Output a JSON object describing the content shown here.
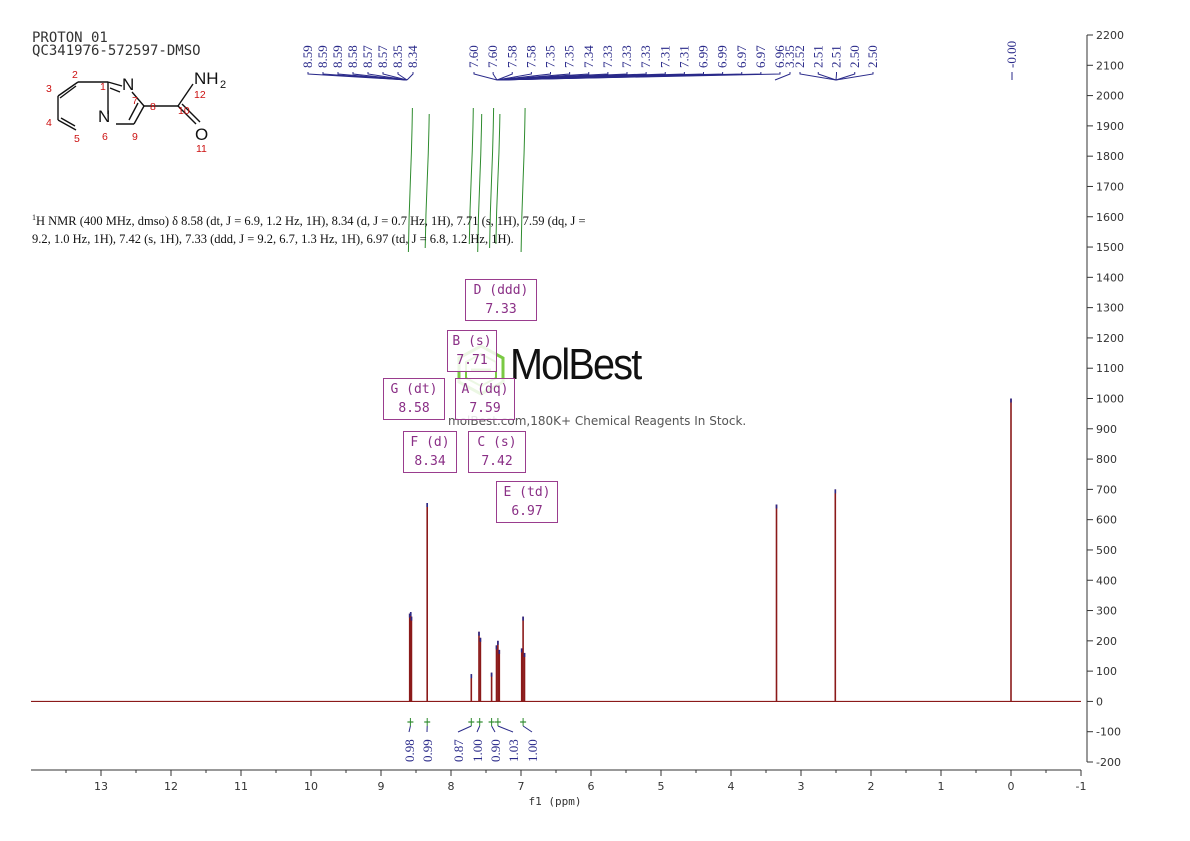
{
  "header": {
    "line1": "PROTON_01",
    "line2": "QC341976-572597-DMSO"
  },
  "structure": {
    "atom_labels": [
      "2",
      "3",
      "4",
      "5",
      "6",
      "7",
      "8",
      "9",
      "10",
      "11",
      "12",
      "1"
    ],
    "group_labels": {
      "N_ring": "N",
      "N_top": "N",
      "NH2": "NH",
      "NH2_sub": "2",
      "O": "O"
    }
  },
  "description": {
    "nucleus_sup": "1",
    "text": "H NMR (400 MHz, dmso) δ 8.58 (dt, J = 6.9, 1.2 Hz, 1H), 8.34 (d, J = 0.7 Hz, 1H), 7.71 (s, 1H), 7.59 (dq, J = 9.2, 1.0 Hz, 1H), 7.42 (s, 1H), 7.33 (ddd, J = 9.2, 6.7, 1.3 Hz, 1H), 6.97 (td, J = 6.8, 1.2 Hz, 1H)."
  },
  "multiplets": [
    {
      "id": "D",
      "label": "D (ddd)",
      "shift": "7.33"
    },
    {
      "id": "B",
      "label": "B (s)",
      "shift": "7.71"
    },
    {
      "id": "G",
      "label": "G (dt)",
      "shift": "8.58"
    },
    {
      "id": "A",
      "label": "A (dq)",
      "shift": "7.59"
    },
    {
      "id": "F",
      "label": "F (d)",
      "shift": "8.34"
    },
    {
      "id": "C",
      "label": "C (s)",
      "shift": "7.42"
    },
    {
      "id": "E",
      "label": "E (td)",
      "shift": "6.97"
    }
  ],
  "watermark": {
    "brand": "MolBest",
    "tagline": "molBest.com,180K+ Chemical Reagents In Stock."
  },
  "colors": {
    "spectrum": "#8b1a1a",
    "peak_labels": "#2a2a8a",
    "integrals": "#2e8b2e",
    "multiplet_box": "#9a3d8e",
    "axis": "#333333"
  },
  "chart_data": {
    "type": "line",
    "xlabel": "f1 (ppm)",
    "ylabel": "",
    "xlim": [
      14,
      -1
    ],
    "ylim": [
      -200,
      2200
    ],
    "x_ticks": [
      13,
      12,
      11,
      10,
      9,
      8,
      7,
      6,
      5,
      4,
      3,
      2,
      1,
      0,
      -1
    ],
    "y_ticks": [
      2200,
      2100,
      2000,
      1900,
      1800,
      1700,
      1600,
      1500,
      1400,
      1300,
      1200,
      1100,
      1000,
      900,
      800,
      700,
      600,
      500,
      400,
      300,
      200,
      100,
      0,
      -100,
      -200
    ],
    "peaks": [
      {
        "ppm": 8.59,
        "height": 290
      },
      {
        "ppm": 8.575,
        "height": 295
      },
      {
        "ppm": 8.565,
        "height": 280
      },
      {
        "ppm": 8.34,
        "height": 655
      },
      {
        "ppm": 7.71,
        "height": 90
      },
      {
        "ppm": 7.6,
        "height": 230
      },
      {
        "ppm": 7.58,
        "height": 210
      },
      {
        "ppm": 7.42,
        "height": 95
      },
      {
        "ppm": 7.35,
        "height": 185
      },
      {
        "ppm": 7.33,
        "height": 200
      },
      {
        "ppm": 7.31,
        "height": 170
      },
      {
        "ppm": 6.99,
        "height": 175
      },
      {
        "ppm": 6.97,
        "height": 280
      },
      {
        "ppm": 6.95,
        "height": 160
      },
      {
        "ppm": 3.35,
        "height": 650
      },
      {
        "ppm": 2.51,
        "height": 700
      },
      {
        "ppm": 0.0,
        "height": 1000
      }
    ],
    "peak_labels": [
      "8.59",
      "8.59",
      "8.59",
      "8.58",
      "8.57",
      "8.57",
      "8.35",
      "8.34",
      "7.60",
      "7.60",
      "7.58",
      "7.58",
      "7.35",
      "7.35",
      "7.34",
      "7.33",
      "7.33",
      "7.33",
      "7.31",
      "7.31",
      "6.99",
      "6.99",
      "6.97",
      "6.97",
      "6.96",
      "3.35",
      "2.52",
      "2.51",
      "2.51",
      "2.50",
      "2.50",
      "-0.00"
    ],
    "integrals": [
      {
        "ppm": 8.58,
        "value": "0.98"
      },
      {
        "ppm": 8.34,
        "value": "0.99"
      },
      {
        "ppm": 7.71,
        "value": "0.87"
      },
      {
        "ppm": 7.59,
        "value": "1.00"
      },
      {
        "ppm": 7.42,
        "value": "0.90"
      },
      {
        "ppm": 7.33,
        "value": "1.03"
      },
      {
        "ppm": 6.97,
        "value": "1.00"
      }
    ]
  }
}
